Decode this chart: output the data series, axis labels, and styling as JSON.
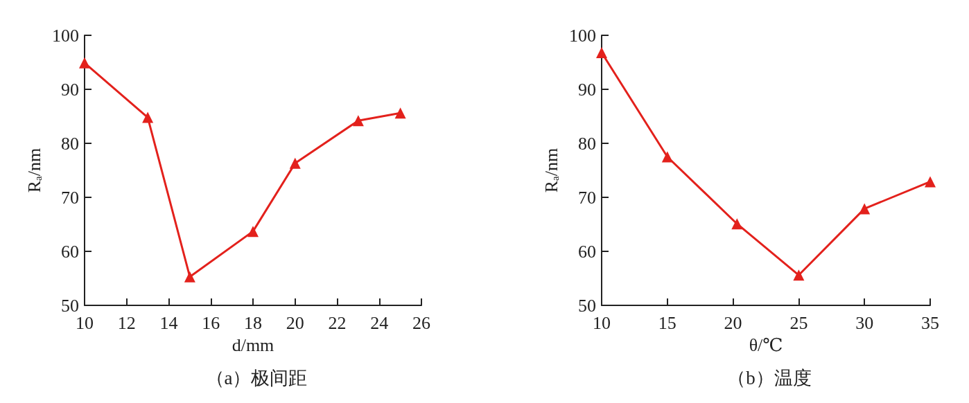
{
  "chart_data": [
    {
      "type": "line",
      "title": "（a）极间距",
      "xlabel": "d/mm",
      "ylabel": "R$_{a}$/nm",
      "x": [
        10,
        13,
        15,
        18,
        20,
        23,
        25
      ],
      "series": [
        {
          "color": "#e3211c",
          "values": [
            94.9,
            84.8,
            55.3,
            63.7,
            76.3,
            84.2,
            85.6
          ]
        }
      ],
      "xlim": [
        10,
        26
      ],
      "xticks": [
        10,
        12,
        14,
        16,
        18,
        20,
        22,
        24,
        26
      ],
      "ylim": [
        50,
        100
      ],
      "yticks": [
        50,
        60,
        70,
        80,
        90,
        100
      ],
      "marker": "triangle"
    },
    {
      "type": "line",
      "title": "（b）温度",
      "xlabel": "θ/℃",
      "ylabel": "R$_{a}$/nm",
      "x": [
        10,
        15,
        20.3,
        25,
        30,
        35
      ],
      "series": [
        {
          "color": "#e3211c",
          "values": [
            96.8,
            77.5,
            65.1,
            55.6,
            67.9,
            72.9
          ]
        }
      ],
      "xlim": [
        10,
        35
      ],
      "xticks": [
        10,
        15,
        20,
        25,
        30,
        35
      ],
      "ylim": [
        50,
        100
      ],
      "yticks": [
        50,
        60,
        70,
        80,
        90,
        100
      ],
      "marker": "triangle"
    }
  ]
}
